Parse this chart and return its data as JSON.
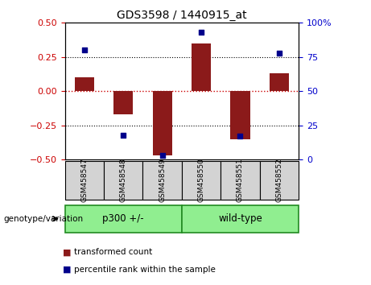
{
  "title": "GDS3598 / 1440915_at",
  "samples": [
    "GSM458547",
    "GSM458548",
    "GSM458549",
    "GSM458550",
    "GSM458551",
    "GSM458552"
  ],
  "bar_values": [
    0.1,
    -0.17,
    -0.47,
    0.35,
    -0.35,
    0.13
  ],
  "percentile_values": [
    80,
    18,
    3,
    93,
    17,
    78
  ],
  "bar_color": "#8B1A1A",
  "dot_color": "#00008B",
  "ylim_left": [
    -0.5,
    0.5
  ],
  "ylim_right": [
    0,
    100
  ],
  "yticks_left": [
    -0.5,
    -0.25,
    0,
    0.25,
    0.5
  ],
  "yticks_right": [
    0,
    25,
    50,
    75,
    100
  ],
  "ytick_labels_right": [
    "0",
    "25",
    "50",
    "75",
    "100%"
  ],
  "hlines": [
    0.25,
    -0.25
  ],
  "zero_line": 0.0,
  "group_labels": [
    "p300 +/-",
    "wild-type"
  ],
  "group_color": "#90EE90",
  "group_row_label": "genotype/variation",
  "legend_bar_label": "transformed count",
  "legend_dot_label": "percentile rank within the sample",
  "bar_width": 0.5,
  "background_color": "#ffffff",
  "plot_bg_color": "#ffffff",
  "sample_box_color": "#d3d3d3",
  "left_yaxis_color": "#cc0000",
  "right_yaxis_color": "#0000cc"
}
